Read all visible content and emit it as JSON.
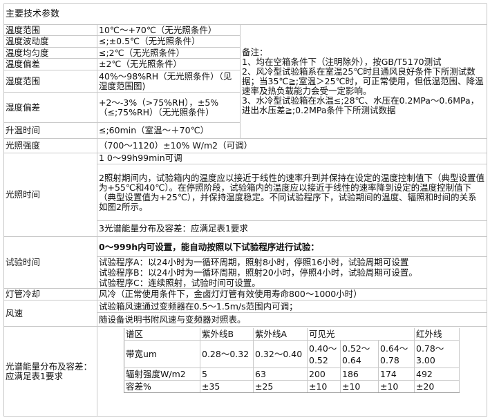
{
  "title": "主要技术参数",
  "rows": {
    "temp_range": {
      "label": "温度范围",
      "value": "10℃～+70℃（无光照条件）"
    },
    "temp_fluct": {
      "label": "温度波动度",
      "value": "≤;±0.5℃（无光照条件）"
    },
    "temp_uniform": {
      "label": "温度均匀度",
      "value": "≤;2℃（无光照条件）"
    },
    "temp_dev": {
      "label": "温度偏差",
      "value": "±2℃（无光照条件）"
    },
    "hum_range": {
      "label": "湿度范围",
      "value": "40%～98%RH（无光照条件）（见湿度范围图)"
    },
    "hum_dev": {
      "label": "湿度偏差",
      "value": "+2～-3%（>75%RH），±5%（≤;75%RH）（无光照条件）"
    },
    "heat_time": {
      "label": "升温时间",
      "value": "≤;60min（室温～＋70℃）"
    },
    "light_intensity": {
      "label": "光照强度",
      "value": "（700～1120）±10% W/m2（可调）"
    },
    "light_time": {
      "label": "光照时间",
      "items": [
        "1  0～99h99min可调",
        "2照射期间内，试验箱内的温度应以接近于线性的速率升到并保持在设定的温度控制值下（典型设置值为+55℃和40℃）。在停照阶段，试验箱内的温度应以接近于线性的速率降到设定的温度控制值下（典型设置值为+25℃），并保持温度稳定。不同试验程序下，试验期间的温度、辐照和时间的关系如图2所示。",
        "3光谱能量分布及容差：应满足表1要求"
      ]
    },
    "test_time": {
      "label": "试验时间",
      "heading": "0～999h内可设置，能自动按照以下试验程序进行试验：",
      "items": [
        "试验程序A：以24小时为一循环周期，照射8小时，停照16小时，试验周期可设置",
        "试验程序B：以24小时为一循环周期，照射20小时，停照4小时，试验周期可设置。",
        "试验程序C：连续照射，试验时间可设置。"
      ]
    },
    "lamp_cooling": {
      "label": "灯管冷却",
      "value": "风冷（正常使用条件下，金卤灯灯管有效使用寿命800～1000小时）"
    },
    "wind_speed": {
      "label": "风速",
      "items": [
        "试验箱风速通过变频器在0.5～1.5m/s范围内可调；",
        "随设备说明书附风速与变频器对照表。"
      ]
    },
    "spectrum": {
      "label": "光谱能量分布及容差：应满足表1要求",
      "table": {
        "header": [
          "谱区",
          "紫外线B",
          "紫外线A",
          "可见光",
          "红外线"
        ],
        "bandwidth": [
          "带宽um",
          "0.28～0.32",
          "0.32～0.40",
          "0.40～0.52",
          "0.52～0.64",
          "0.64～0.78",
          "0.78～3.00"
        ],
        "irradiance": [
          "辐射强度W/m2",
          "5",
          "63",
          "200",
          "186",
          "174",
          "492"
        ],
        "tolerance": [
          "容差%",
          "±35",
          "±25",
          "±10",
          "±10",
          "±10",
          "±20"
        ]
      }
    }
  },
  "notes": {
    "heading": "备注：",
    "items": [
      "1、均在空箱条件下（注明除外），按GB/T5170测试",
      "2、风冷型试验箱系在室温25℃时且通风良好条件下所测试数据；当35℃≧;室温＞25℃时，可正常使用，但低温范围、降温速率及热负载能力会受一定影响。",
      "3、水冷型试验箱在水温≤;28℃、水压在0.2MPa～0.6MPa，进出水压差≧;0.2MPa条件下所测试数据"
    ]
  }
}
